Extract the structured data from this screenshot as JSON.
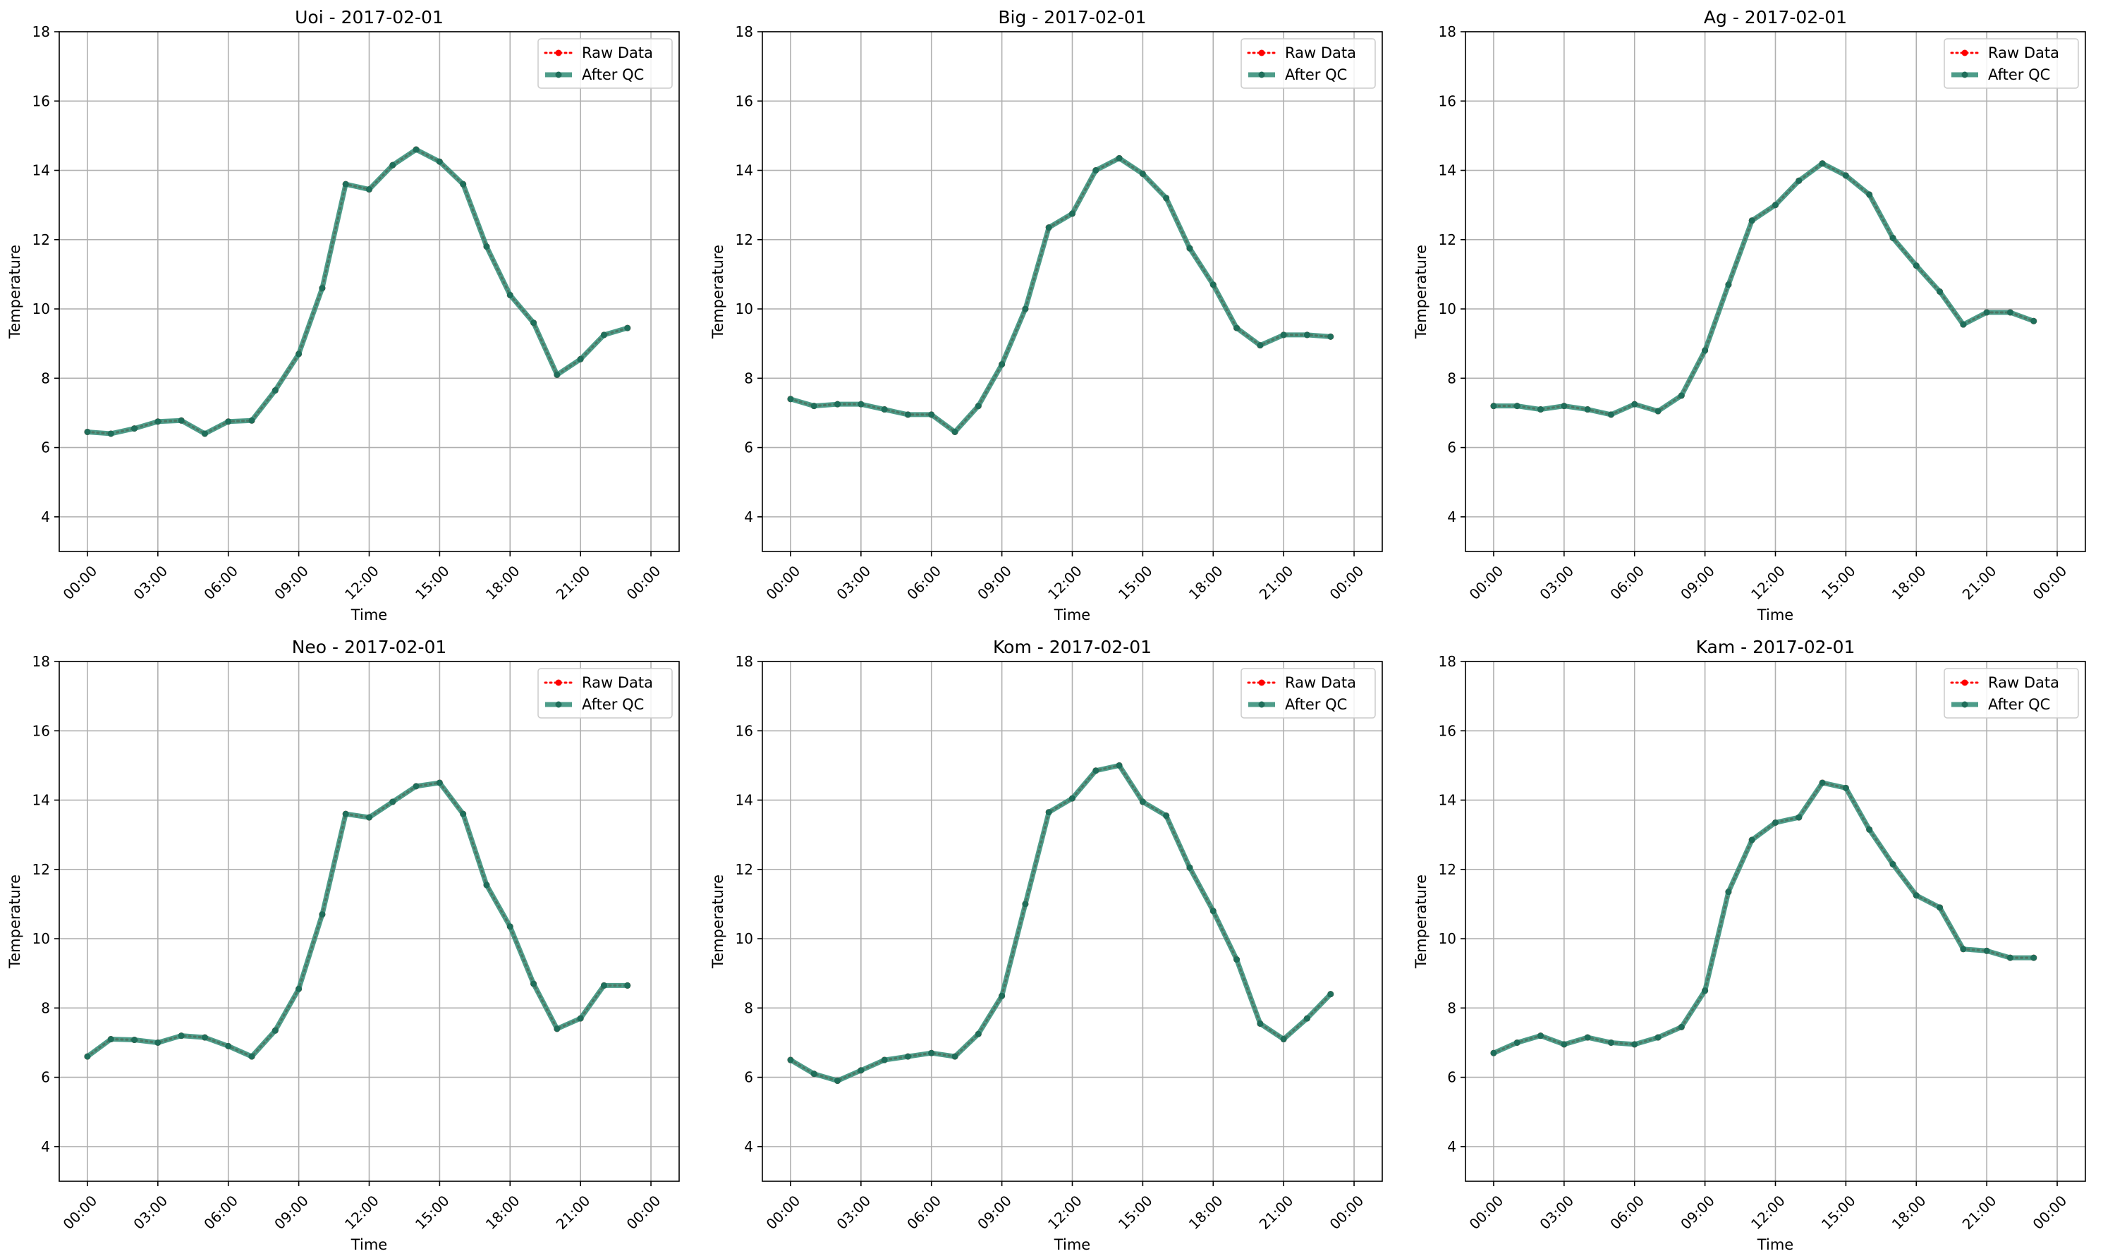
{
  "figure": {
    "legend": {
      "raw_label": "Raw Data",
      "qc_label": "After QC",
      "placement": "upper-right"
    },
    "colors": {
      "raw": "#ff0000",
      "qc": "#2e8b74",
      "grid": "#b0b0b0"
    }
  },
  "chart_data": [
    {
      "type": "line",
      "title": "Uoi - 2017-02-01",
      "xlabel": "Time",
      "ylabel": "Temperature",
      "ylim": [
        3,
        18
      ],
      "yticks": [
        4,
        6,
        8,
        10,
        12,
        14,
        16,
        18
      ],
      "xticks": [
        "00:00",
        "03:00",
        "06:00",
        "09:00",
        "12:00",
        "15:00",
        "18:00",
        "21:00",
        "00:00"
      ],
      "grid": true,
      "x_hours": [
        0,
        1,
        2,
        3,
        4,
        5,
        6,
        7,
        8,
        9,
        10,
        11,
        12,
        13,
        14,
        15,
        16,
        17,
        18,
        19,
        20,
        21,
        22,
        23
      ],
      "series": [
        {
          "name": "Raw Data",
          "values": [
            6.45,
            6.4,
            6.55,
            6.75,
            6.78,
            6.4,
            6.75,
            6.78,
            7.65,
            8.7,
            10.6,
            13.6,
            13.45,
            14.15,
            14.6,
            14.25,
            13.6,
            11.8,
            10.4,
            9.6,
            8.1,
            8.55,
            9.25,
            9.45
          ]
        },
        {
          "name": "After QC",
          "values": [
            6.45,
            6.4,
            6.55,
            6.75,
            6.78,
            6.4,
            6.75,
            6.78,
            7.65,
            8.7,
            10.6,
            13.6,
            13.45,
            14.15,
            14.6,
            14.25,
            13.6,
            11.8,
            10.4,
            9.6,
            8.1,
            8.55,
            9.25,
            9.45
          ]
        }
      ]
    },
    {
      "type": "line",
      "title": "Big - 2017-02-01",
      "xlabel": "Time",
      "ylabel": "Temperature",
      "ylim": [
        3,
        18
      ],
      "yticks": [
        4,
        6,
        8,
        10,
        12,
        14,
        16,
        18
      ],
      "xticks": [
        "00:00",
        "03:00",
        "06:00",
        "09:00",
        "12:00",
        "15:00",
        "18:00",
        "21:00",
        "00:00"
      ],
      "grid": true,
      "x_hours": [
        0,
        1,
        2,
        3,
        4,
        5,
        6,
        7,
        8,
        9,
        10,
        11,
        12,
        13,
        14,
        15,
        16,
        17,
        18,
        19,
        20,
        21,
        22,
        23
      ],
      "series": [
        {
          "name": "Raw Data",
          "values": [
            7.4,
            7.2,
            7.25,
            7.25,
            7.1,
            6.95,
            6.95,
            6.45,
            7.2,
            8.4,
            10.0,
            12.35,
            12.75,
            14.0,
            14.35,
            13.9,
            13.2,
            11.75,
            10.7,
            9.45,
            8.95,
            9.25,
            9.25,
            9.2
          ]
        },
        {
          "name": "After QC",
          "values": [
            7.4,
            7.2,
            7.25,
            7.25,
            7.1,
            6.95,
            6.95,
            6.45,
            7.2,
            8.4,
            10.0,
            12.35,
            12.75,
            14.0,
            14.35,
            13.9,
            13.2,
            11.75,
            10.7,
            9.45,
            8.95,
            9.25,
            9.25,
            9.2
          ]
        }
      ]
    },
    {
      "type": "line",
      "title": "Ag - 2017-02-01",
      "xlabel": "Time",
      "ylabel": "Temperature",
      "ylim": [
        3,
        18
      ],
      "yticks": [
        4,
        6,
        8,
        10,
        12,
        14,
        16,
        18
      ],
      "xticks": [
        "00:00",
        "03:00",
        "06:00",
        "09:00",
        "12:00",
        "15:00",
        "18:00",
        "21:00",
        "00:00"
      ],
      "grid": true,
      "x_hours": [
        0,
        1,
        2,
        3,
        4,
        5,
        6,
        7,
        8,
        9,
        10,
        11,
        12,
        13,
        14,
        15,
        16,
        17,
        18,
        19,
        20,
        21,
        22,
        23
      ],
      "series": [
        {
          "name": "Raw Data",
          "values": [
            7.2,
            7.2,
            7.1,
            7.2,
            7.1,
            6.95,
            7.25,
            7.05,
            7.5,
            8.8,
            10.7,
            12.55,
            13.0,
            13.7,
            14.2,
            13.85,
            13.3,
            12.05,
            11.25,
            10.5,
            9.55,
            9.9,
            9.9,
            9.65
          ]
        },
        {
          "name": "After QC",
          "values": [
            7.2,
            7.2,
            7.1,
            7.2,
            7.1,
            6.95,
            7.25,
            7.05,
            7.5,
            8.8,
            10.7,
            12.55,
            13.0,
            13.7,
            14.2,
            13.85,
            13.3,
            12.05,
            11.25,
            10.5,
            9.55,
            9.9,
            9.9,
            9.65
          ]
        }
      ]
    },
    {
      "type": "line",
      "title": "Neo - 2017-02-01",
      "xlabel": "Time",
      "ylabel": "Temperature",
      "ylim": [
        3,
        18
      ],
      "yticks": [
        4,
        6,
        8,
        10,
        12,
        14,
        16,
        18
      ],
      "xticks": [
        "00:00",
        "03:00",
        "06:00",
        "09:00",
        "12:00",
        "15:00",
        "18:00",
        "21:00",
        "00:00"
      ],
      "grid": true,
      "x_hours": [
        0,
        1,
        2,
        3,
        4,
        5,
        6,
        7,
        8,
        9,
        10,
        11,
        12,
        13,
        14,
        15,
        16,
        17,
        18,
        19,
        20,
        21,
        22,
        23
      ],
      "series": [
        {
          "name": "Raw Data",
          "values": [
            6.6,
            7.1,
            7.08,
            7.0,
            7.2,
            7.15,
            6.9,
            6.6,
            7.35,
            8.55,
            10.7,
            13.6,
            13.5,
            13.95,
            14.4,
            14.5,
            13.6,
            11.55,
            10.35,
            8.7,
            7.4,
            7.7,
            8.65,
            8.65
          ]
        },
        {
          "name": "After QC",
          "values": [
            6.6,
            7.1,
            7.08,
            7.0,
            7.2,
            7.15,
            6.9,
            6.6,
            7.35,
            8.55,
            10.7,
            13.6,
            13.5,
            13.95,
            14.4,
            14.5,
            13.6,
            11.55,
            10.35,
            8.7,
            7.4,
            7.7,
            8.65,
            8.65
          ]
        }
      ]
    },
    {
      "type": "line",
      "title": "Kom - 2017-02-01",
      "xlabel": "Time",
      "ylabel": "Temperature",
      "ylim": [
        3,
        18
      ],
      "yticks": [
        4,
        6,
        8,
        10,
        12,
        14,
        16,
        18
      ],
      "xticks": [
        "00:00",
        "03:00",
        "06:00",
        "09:00",
        "12:00",
        "15:00",
        "18:00",
        "21:00",
        "00:00"
      ],
      "grid": true,
      "x_hours": [
        0,
        1,
        2,
        3,
        4,
        5,
        6,
        7,
        8,
        9,
        10,
        11,
        12,
        13,
        14,
        15,
        16,
        17,
        18,
        19,
        20,
        21,
        22,
        23
      ],
      "series": [
        {
          "name": "Raw Data",
          "values": [
            6.5,
            6.1,
            5.9,
            6.2,
            6.5,
            6.6,
            6.7,
            6.6,
            7.25,
            8.35,
            11.0,
            13.65,
            14.05,
            14.85,
            15.0,
            13.95,
            13.55,
            12.05,
            10.8,
            9.4,
            7.55,
            7.1,
            7.7,
            8.4
          ]
        },
        {
          "name": "After QC",
          "values": [
            6.5,
            6.1,
            5.9,
            6.2,
            6.5,
            6.6,
            6.7,
            6.6,
            7.25,
            8.35,
            11.0,
            13.65,
            14.05,
            14.85,
            15.0,
            13.95,
            13.55,
            12.05,
            10.8,
            9.4,
            7.55,
            7.1,
            7.7,
            8.4
          ]
        }
      ]
    },
    {
      "type": "line",
      "title": "Kam - 2017-02-01",
      "xlabel": "Time",
      "ylabel": "Temperature",
      "ylim": [
        3,
        18
      ],
      "yticks": [
        4,
        6,
        8,
        10,
        12,
        14,
        16,
        18
      ],
      "xticks": [
        "00:00",
        "03:00",
        "06:00",
        "09:00",
        "12:00",
        "15:00",
        "18:00",
        "21:00",
        "00:00"
      ],
      "grid": true,
      "x_hours": [
        0,
        1,
        2,
        3,
        4,
        5,
        6,
        7,
        8,
        9,
        10,
        11,
        12,
        13,
        14,
        15,
        16,
        17,
        18,
        19,
        20,
        21,
        22,
        23
      ],
      "series": [
        {
          "name": "Raw Data",
          "values": [
            6.7,
            7.0,
            7.2,
            6.95,
            7.15,
            7.0,
            6.95,
            7.15,
            7.45,
            8.5,
            11.35,
            12.85,
            13.35,
            13.5,
            14.5,
            14.35,
            13.15,
            12.15,
            11.25,
            10.9,
            9.7,
            9.65,
            9.45,
            9.45
          ]
        },
        {
          "name": "After QC",
          "values": [
            6.7,
            7.0,
            7.2,
            6.95,
            7.15,
            7.0,
            6.95,
            7.15,
            7.45,
            8.5,
            11.35,
            12.85,
            13.35,
            13.5,
            14.5,
            14.35,
            13.15,
            12.15,
            11.25,
            10.9,
            9.7,
            9.65,
            9.45,
            9.45
          ]
        }
      ]
    }
  ]
}
